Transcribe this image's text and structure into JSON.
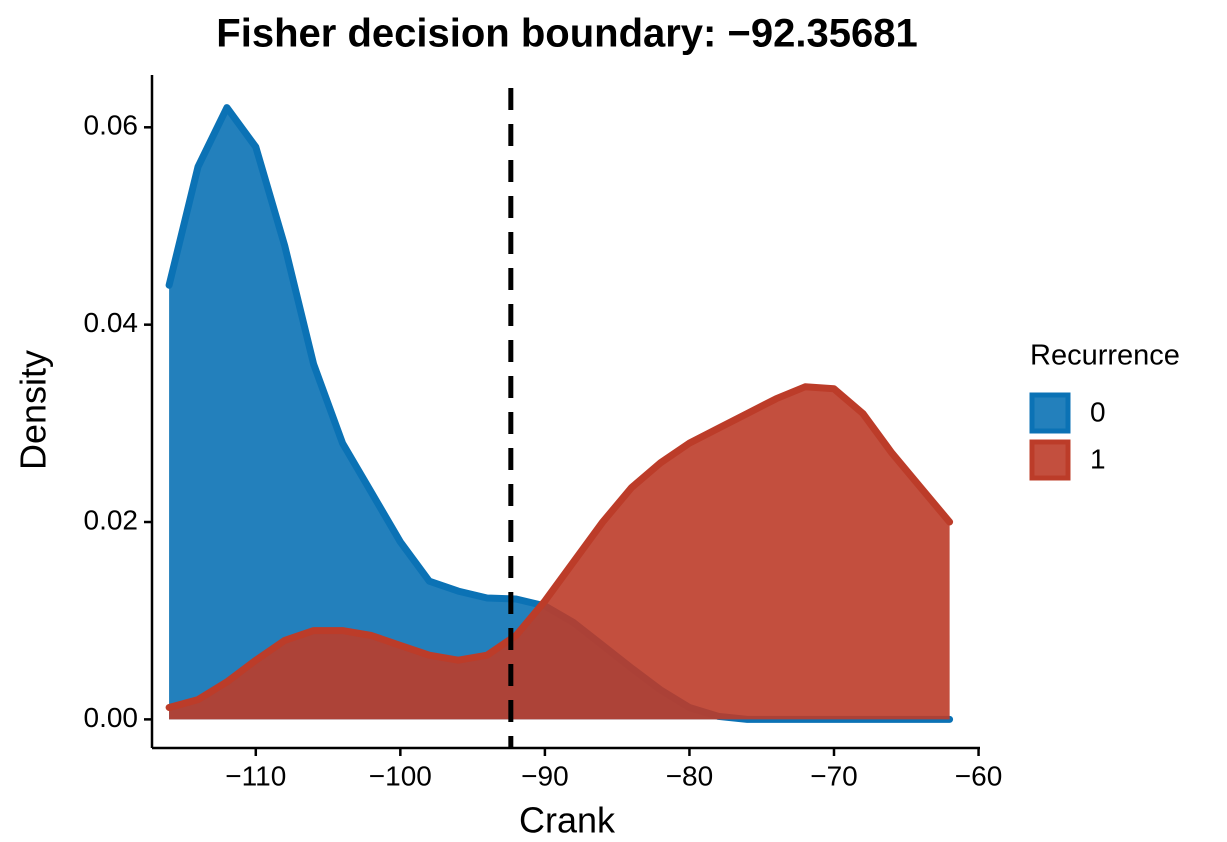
{
  "chart_data": {
    "type": "area",
    "title": "Fisher decision boundary: −92.35681",
    "x_label": "Crank",
    "y_label": "Density",
    "legend_title": "Recurrence",
    "legend_position": "right",
    "x": [
      -116,
      -114,
      -112,
      -110,
      -108,
      -106,
      -104,
      -102,
      -100,
      -98,
      -96,
      -94,
      -92,
      -90,
      -88,
      -86,
      -84,
      -82,
      -80,
      -78,
      -76,
      -74,
      -72,
      -70,
      -68,
      -66,
      -64,
      -62
    ],
    "series": [
      {
        "name": "0",
        "color": "#0b72b5",
        "values": [
          0.044,
          0.056,
          0.062,
          0.058,
          0.048,
          0.036,
          0.028,
          0.023,
          0.018,
          0.014,
          0.013,
          0.0123,
          0.0122,
          0.0115,
          0.0098,
          0.0075,
          0.0052,
          0.003,
          0.0012,
          0.0003,
          0,
          0,
          0,
          0,
          0,
          0,
          0,
          0
        ]
      },
      {
        "name": "1",
        "color": "#bc3c29",
        "values": [
          0.0012,
          0.002,
          0.0038,
          0.006,
          0.008,
          0.009,
          0.009,
          0.0085,
          0.0075,
          0.0065,
          0.006,
          0.0065,
          0.0085,
          0.012,
          0.016,
          0.02,
          0.0235,
          0.026,
          0.028,
          0.0295,
          0.031,
          0.0325,
          0.0337,
          0.0335,
          0.031,
          0.027,
          0.0235,
          0.02
        ]
      }
    ],
    "vline": -92.35681,
    "xlim": [
      -117.18,
      -59.9
    ],
    "ylim": [
      -0.0029,
      0.0653
    ],
    "xticks": [
      {
        "value": -110,
        "label": "−110"
      },
      {
        "value": -100,
        "label": "−100"
      },
      {
        "value": -90,
        "label": "−90"
      },
      {
        "value": -80,
        "label": "−80"
      },
      {
        "value": -70,
        "label": "−70"
      },
      {
        "value": -60,
        "label": "−60"
      }
    ],
    "yticks": [
      {
        "value": 0,
        "label": "0.00"
      },
      0.02,
      0.04,
      0.06
    ]
  }
}
